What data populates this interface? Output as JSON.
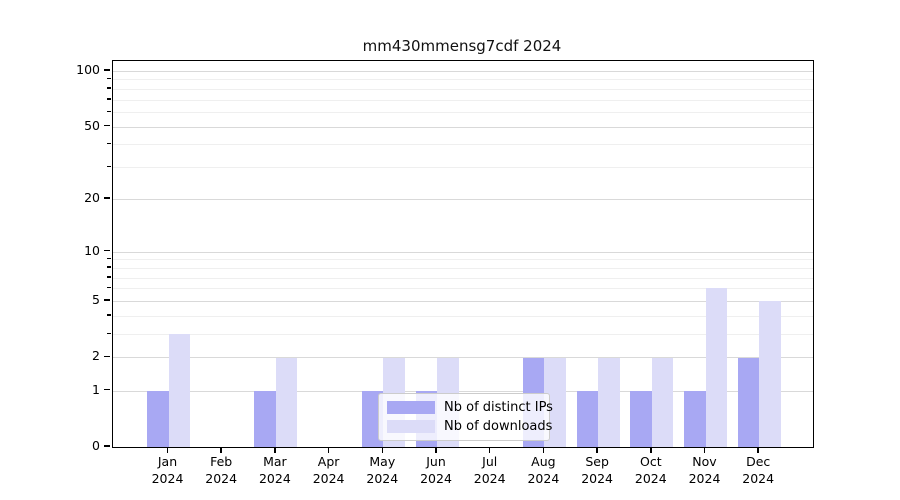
{
  "title": "mm430mmensg7cdf 2024",
  "chart_data": {
    "type": "bar",
    "title": "mm430mmensg7cdf 2024",
    "categories": [
      "Jan 2024",
      "Feb 2024",
      "Mar 2024",
      "Apr 2024",
      "May 2024",
      "Jun 2024",
      "Jul 2024",
      "Aug 2024",
      "Sep 2024",
      "Oct 2024",
      "Nov 2024",
      "Dec 2024"
    ],
    "series": [
      {
        "name": "Nb of distinct IPs",
        "color": "#a8a8f3",
        "values": [
          1,
          0,
          1,
          0,
          1,
          1,
          0,
          2,
          1,
          1,
          1,
          2
        ]
      },
      {
        "name": "Nb of downloads",
        "color": "#dcdcf8",
        "values": [
          3,
          0,
          2,
          0,
          2,
          2,
          0,
          2,
          2,
          2,
          6,
          5
        ]
      }
    ],
    "xlabel": "",
    "ylabel": "",
    "yscale": "log1p",
    "yticks": [
      0,
      1,
      2,
      5,
      10,
      20,
      50,
      100
    ],
    "minor_yticks": [
      3,
      4,
      6,
      7,
      8,
      9,
      30,
      40,
      60,
      70,
      80,
      90
    ],
    "ylim": [
      0,
      113
    ],
    "grid": true,
    "legend_position": "lower center"
  },
  "colors": {
    "bar_distinct_ips": "#a8a8f3",
    "bar_downloads": "#dcdcf8",
    "grid_major": "#d9d9d9",
    "grid_minor": "#efefef",
    "axis": "#000000",
    "legend_border": "#cccccc"
  }
}
